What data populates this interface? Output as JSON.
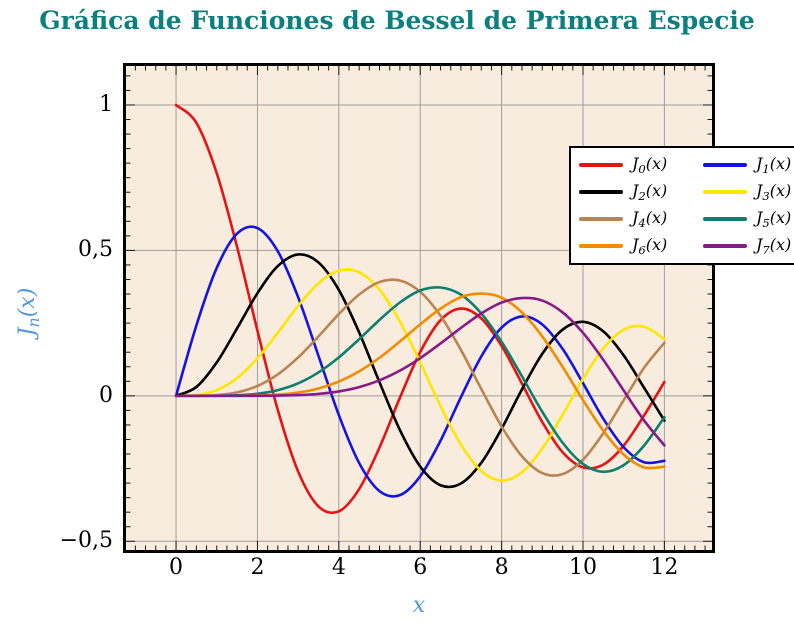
{
  "title": {
    "text": "Gráfica de Funciones de Bessel de Primera Especie",
    "color": "#0e7f80"
  },
  "axes": {
    "xlabel": "x",
    "ylabel": {
      "base": "J",
      "sub": "n",
      "arg": "(x)"
    },
    "label_color": "#4e99dc",
    "plot_bg": "#f8ecdf",
    "grid_color": "#9e9e9e",
    "tick_color": "#1a1a1a",
    "frame_color": "#000000",
    "view": {
      "xmin": -1.23,
      "xmax": 13.17,
      "ymin": -0.53,
      "ymax": 1.134
    },
    "x_ticks": {
      "values": [
        0,
        2,
        4,
        6,
        8,
        10,
        12
      ],
      "labels": [
        "0",
        "2",
        "4",
        "6",
        "8",
        "10",
        "12"
      ],
      "minor_step": 0.25
    },
    "y_ticks": {
      "values": [
        1,
        0.5,
        0,
        -0.5
      ],
      "labels": [
        "1",
        "0,5",
        "0",
        "−0,5"
      ],
      "minor_step": 0.05
    }
  },
  "legend": {
    "bg": "#ffffff",
    "border": "#000000",
    "position": "top-right"
  },
  "chart_data": {
    "type": "line",
    "title": "Gráfica de Funciones de Bessel de Primera Especie",
    "xlabel": "x",
    "ylabel": "J_n(x)",
    "xlim": [
      0,
      12
    ],
    "ylim": [
      -0.5,
      1
    ],
    "grid": true,
    "legend_position": "top-right",
    "x": [
      0,
      0.5,
      1,
      1.5,
      2,
      2.5,
      3,
      3.5,
      4,
      4.5,
      5,
      5.5,
      6,
      6.5,
      7,
      7.5,
      8,
      8.5,
      9,
      9.5,
      10,
      10.5,
      11,
      11.5,
      12
    ],
    "series": [
      {
        "name": "J_0(x)",
        "order": 0,
        "color": "#e51313",
        "label": {
          "base": "J",
          "sub": "0",
          "arg": "(x)"
        },
        "values": [
          1,
          0.9385,
          0.7652,
          0.5118,
          0.2239,
          -0.0484,
          -0.2601,
          -0.3801,
          -0.3971,
          -0.3205,
          -0.1776,
          -0.0068,
          0.1506,
          0.2601,
          0.3001,
          0.2663,
          0.1717,
          0.0419,
          -0.0903,
          -0.1939,
          -0.2459,
          -0.2366,
          -0.1712,
          -0.0677,
          0.0477
        ]
      },
      {
        "name": "J_1(x)",
        "order": 1,
        "color": "#1414dc",
        "label": {
          "base": "J",
          "sub": "1",
          "arg": "(x)"
        },
        "values": [
          0,
          0.2423,
          0.4401,
          0.5579,
          0.5767,
          0.4971,
          0.3391,
          0.1374,
          -0.066,
          -0.2311,
          -0.3276,
          -0.3414,
          -0.2767,
          -0.1538,
          -0.0047,
          0.1352,
          0.2346,
          0.2731,
          0.2453,
          0.1613,
          0.0435,
          -0.0789,
          -0.1768,
          -0.2284,
          -0.2234
        ]
      },
      {
        "name": "J_2(x)",
        "order": 2,
        "color": "#000000",
        "label": {
          "base": "J",
          "sub": "2",
          "arg": "(x)"
        },
        "values": [
          0,
          0.0306,
          0.1149,
          0.2321,
          0.3528,
          0.4461,
          0.4861,
          0.4586,
          0.3641,
          0.2178,
          0.0466,
          -0.1173,
          -0.2429,
          -0.3074,
          -0.3014,
          -0.2303,
          -0.113,
          0.0223,
          0.1448,
          0.2279,
          0.2546,
          0.2216,
          0.139,
          0.0279,
          -0.0849
        ]
      },
      {
        "name": "J_3(x)",
        "order": 3,
        "color": "#ffe600",
        "label": {
          "base": "J",
          "sub": "3",
          "arg": "(x)"
        },
        "values": [
          0,
          0.0026,
          0.0196,
          0.061,
          0.1289,
          0.2166,
          0.3091,
          0.3868,
          0.4302,
          0.4247,
          0.3648,
          0.2561,
          0.1148,
          -0.0353,
          -0.1676,
          -0.2581,
          -0.2911,
          -0.2626,
          -0.1809,
          -0.0653,
          0.0584,
          0.1633,
          0.2273,
          0.2381,
          0.1951
        ]
      },
      {
        "name": "J_4(x)",
        "order": 4,
        "color": "#ba8452",
        "label": {
          "base": "J",
          "sub": "4",
          "arg": "(x)"
        },
        "values": [
          0,
          0.0002,
          0.0025,
          0.0118,
          0.034,
          0.0738,
          0.132,
          0.2044,
          0.2811,
          0.3484,
          0.3912,
          0.3967,
          0.3576,
          0.2748,
          0.1578,
          0.0238,
          -0.1054,
          -0.2077,
          -0.2655,
          -0.2691,
          -0.2196,
          -0.1283,
          -0.015,
          0.0963,
          0.1825
        ]
      },
      {
        "name": "J_5(x)",
        "order": 5,
        "color": "#0b7f70",
        "label": {
          "base": "J",
          "sub": "5",
          "arg": "(x)"
        },
        "values": [
          0,
          0,
          0.0002,
          0.0018,
          0.007,
          0.0195,
          0.043,
          0.0804,
          0.1321,
          0.1947,
          0.2611,
          0.3209,
          0.3621,
          0.3725,
          0.3479,
          0.2833,
          0.1858,
          0.0671,
          -0.055,
          -0.1613,
          -0.2341,
          -0.2611,
          -0.2383,
          -0.1711,
          -0.0735
        ]
      },
      {
        "name": "J_6(x)",
        "order": 6,
        "color": "#f18c00",
        "label": {
          "base": "J",
          "sub": "6",
          "arg": "(x)"
        },
        "values": [
          0,
          0,
          0,
          0.0002,
          0.0012,
          0.0042,
          0.0114,
          0.0254,
          0.0491,
          0.0843,
          0.131,
          0.1868,
          0.2458,
          0.2999,
          0.3392,
          0.3516,
          0.3376,
          0.2867,
          0.2043,
          0.0993,
          -0.0145,
          -0.1203,
          -0.2016,
          -0.2458,
          -0.2437
        ]
      },
      {
        "name": "J_7(x)",
        "order": 7,
        "color": "#861a86",
        "label": {
          "base": "J",
          "sub": "7",
          "arg": "(x)"
        },
        "values": [
          0,
          0,
          0,
          0,
          0.0002,
          0.0008,
          0.0025,
          0.0067,
          0.0152,
          0.03,
          0.0534,
          0.0866,
          0.1296,
          0.1801,
          0.2336,
          0.2832,
          0.3206,
          0.3362,
          0.3275,
          0.2868,
          0.2167,
          0.1236,
          0.0184,
          -0.0846,
          -0.1703
        ]
      }
    ]
  }
}
